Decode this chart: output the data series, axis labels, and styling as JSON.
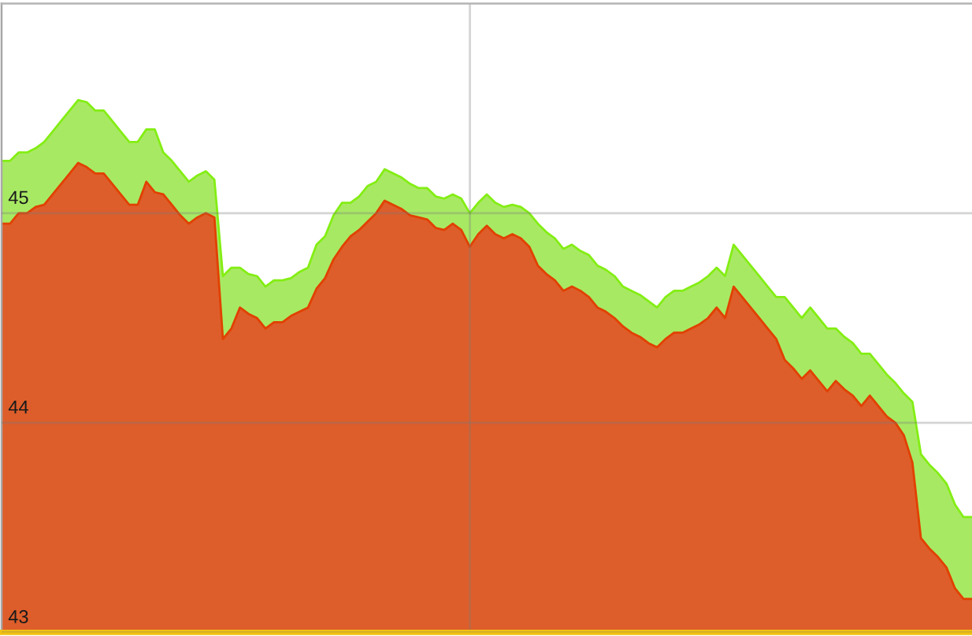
{
  "chart_data": {
    "type": "area",
    "categories": [
      null,
      null,
      null,
      null,
      null,
      null,
      null,
      null,
      null,
      null,
      null,
      null,
      null,
      null,
      null,
      null,
      null,
      null,
      null,
      null,
      null,
      null,
      null,
      null,
      null,
      null,
      null,
      null,
      null,
      null,
      null,
      null,
      null,
      null,
      null,
      null,
      null,
      null,
      null,
      null,
      null,
      null,
      null,
      null,
      null,
      null,
      null,
      null,
      null,
      null,
      null,
      null,
      null,
      null,
      null,
      null,
      null,
      null,
      null,
      null,
      null,
      null,
      null,
      null,
      null,
      null,
      null,
      null,
      null,
      null,
      null,
      null,
      null,
      null,
      null,
      null,
      null,
      null,
      null,
      null,
      null,
      null,
      null,
      null,
      null,
      null,
      null,
      null,
      null,
      null,
      null,
      null,
      null,
      null,
      null,
      null,
      null,
      null,
      null,
      null,
      null,
      null,
      null,
      null,
      null,
      null,
      null,
      null,
      null,
      null,
      null,
      null,
      null,
      null,
      null
    ],
    "series": [
      {
        "color": "#a8e964",
        "values": [
          45.25,
          45.25,
          45.29,
          45.29,
          45.31,
          45.34,
          45.39,
          45.44,
          45.49,
          45.54,
          45.53,
          45.49,
          45.49,
          45.44,
          45.39,
          45.34,
          45.34,
          45.4,
          45.4,
          45.29,
          45.25,
          45.2,
          45.15,
          45.18,
          45.2,
          45.16,
          44.7,
          44.74,
          44.74,
          44.71,
          44.7,
          44.65,
          44.68,
          44.68,
          44.69,
          44.72,
          44.74,
          44.85,
          44.89,
          44.99,
          45.05,
          45.05,
          45.08,
          45.13,
          45.15,
          45.21,
          45.19,
          45.17,
          45.14,
          45.12,
          45.12,
          45.08,
          45.07,
          45.09,
          45.07,
          45.0,
          45.05,
          45.09,
          45.05,
          45.03,
          45.04,
          45.03,
          45.0,
          44.95,
          44.91,
          44.88,
          44.83,
          44.85,
          44.82,
          44.8,
          44.75,
          44.73,
          44.7,
          44.65,
          44.63,
          44.61,
          44.58,
          44.55,
          44.6,
          44.63,
          44.63,
          44.65,
          44.67,
          44.7,
          44.74,
          44.7,
          44.85,
          44.8,
          44.75,
          44.7,
          44.65,
          44.6,
          44.6,
          44.55,
          44.5,
          44.55,
          44.5,
          44.45,
          44.45,
          44.41,
          44.38,
          44.33,
          44.33,
          44.28,
          44.23,
          44.19,
          44.14,
          44.1,
          43.85,
          43.8,
          43.76,
          43.71,
          43.61,
          43.55,
          43.55
        ]
      },
      {
        "color": "#dd5e2b",
        "values": [
          44.95,
          44.95,
          45.0,
          45.0,
          45.03,
          45.04,
          45.09,
          45.14,
          45.19,
          45.24,
          45.22,
          45.19,
          45.19,
          45.14,
          45.09,
          45.04,
          45.04,
          45.15,
          45.1,
          45.09,
          45.04,
          44.99,
          44.95,
          44.98,
          45.0,
          44.98,
          44.4,
          44.45,
          44.55,
          44.52,
          44.5,
          44.45,
          44.48,
          44.48,
          44.51,
          44.53,
          44.55,
          44.64,
          44.69,
          44.78,
          44.84,
          44.89,
          44.92,
          44.96,
          45.0,
          45.06,
          45.04,
          45.02,
          44.99,
          44.98,
          44.97,
          44.93,
          44.92,
          44.95,
          44.92,
          44.84,
          44.9,
          44.94,
          44.9,
          44.88,
          44.9,
          44.88,
          44.84,
          44.75,
          44.71,
          44.68,
          44.63,
          44.65,
          44.63,
          44.6,
          44.55,
          44.53,
          44.5,
          44.46,
          44.43,
          44.41,
          44.38,
          44.36,
          44.4,
          44.43,
          44.43,
          44.45,
          44.47,
          44.5,
          44.55,
          44.5,
          44.65,
          44.6,
          44.55,
          44.5,
          44.45,
          44.4,
          44.3,
          44.26,
          44.21,
          44.25,
          44.2,
          44.15,
          44.2,
          44.16,
          44.13,
          44.08,
          44.13,
          44.08,
          44.03,
          44.0,
          43.94,
          43.81,
          43.45,
          43.4,
          43.36,
          43.31,
          43.21,
          43.16,
          43.16
        ]
      }
    ],
    "ylim": [
      43,
      46
    ],
    "yticks": [
      43,
      44,
      45
    ],
    "grid": "y",
    "tick_labels": "y"
  }
}
